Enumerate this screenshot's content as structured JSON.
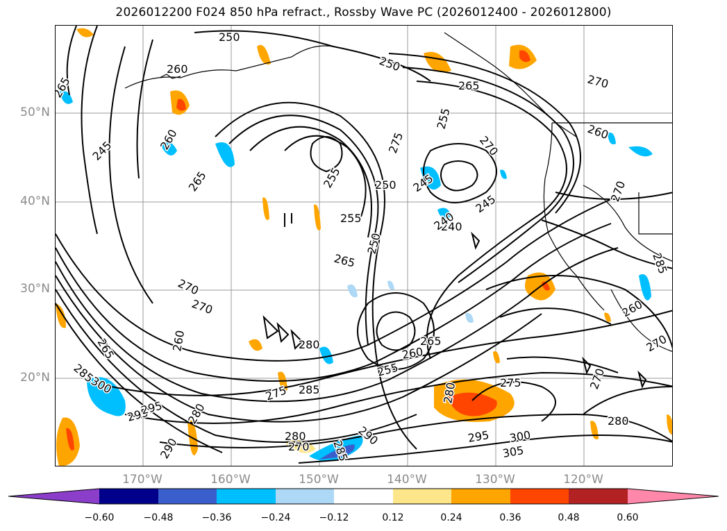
{
  "title": "2026012200 F024 850 hPa refract., Rossby Wave PC (2026012400 - 2026012800)",
  "map": {
    "lat_labels": [
      "50°N",
      "40°N",
      "30°N",
      "20°N"
    ],
    "lon_labels": [
      "170°W",
      "160°W",
      "150°W",
      "140°W",
      "130°W",
      "120°W"
    ],
    "contour_labels": [
      "250",
      "260",
      "265",
      "250",
      "245",
      "270",
      "265",
      "255",
      "260",
      "265",
      "270",
      "260",
      "255",
      "250",
      "255",
      "270",
      "275",
      "245",
      "240",
      "245",
      "250",
      "265",
      "270",
      "270",
      "265",
      "280",
      "285",
      "300",
      "295",
      "290",
      "280",
      "260",
      "255",
      "275",
      "265",
      "260",
      "285",
      "270",
      "280",
      "275",
      "270",
      "280",
      "290",
      "295",
      "300",
      "305",
      "280",
      "285",
      "260",
      "240",
      "295",
      "285",
      "270"
    ]
  },
  "colorbar": {
    "colors": [
      "#8a3ec9",
      "#00008b",
      "#3a5fcd",
      "#00bfff",
      "#add8f6",
      "#ffffff",
      "#fde68a",
      "#ffa500",
      "#ff4500",
      "#b22222",
      "#ff88aa"
    ],
    "tick_labels": [
      "−0.60",
      "−0.48",
      "−0.36",
      "−0.24",
      "−0.12",
      "0.12",
      "0.24",
      "0.36",
      "0.48",
      "0.60"
    ]
  }
}
